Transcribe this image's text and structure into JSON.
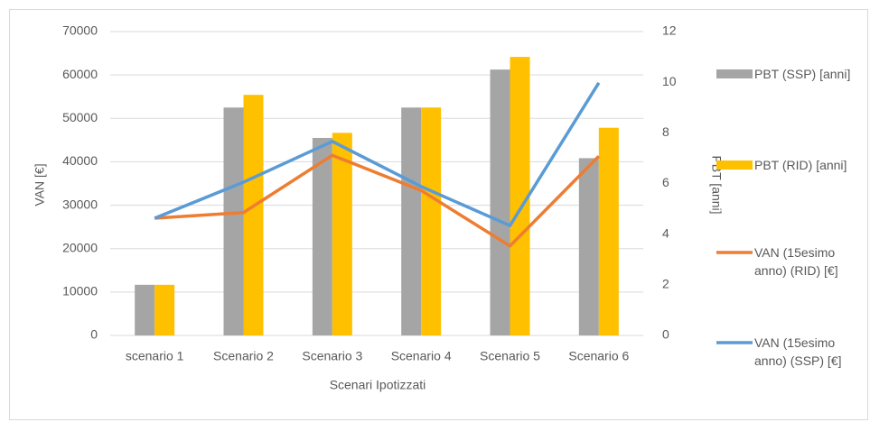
{
  "chart_data": {
    "type": "bar-line",
    "x_label": "Scenari Ipotizzati",
    "y_label": "VAN [€]",
    "y2_label": "PBT [anni]",
    "categories": [
      "scenario 1",
      "Scenario 2",
      "Scenario 3",
      "Scenario 4",
      "Scenario 5",
      "Scenario 6"
    ],
    "ylim": [
      0,
      70000
    ],
    "yticks": [
      0,
      10000,
      20000,
      30000,
      40000,
      50000,
      60000,
      70000
    ],
    "y2lim": [
      0,
      12
    ],
    "y2ticks": [
      0,
      2,
      4,
      6,
      8,
      10,
      12
    ],
    "grid": true,
    "legend": "right",
    "series": [
      {
        "name": "PBT (SSP) [anni]",
        "type": "bar",
        "axis": "y2",
        "color": "#a5a5a5",
        "values": [
          2,
          9,
          7.8,
          9,
          10.5,
          7
        ]
      },
      {
        "name": "PBT (RID) [anni]",
        "type": "bar",
        "axis": "y2",
        "color": "#ffc000",
        "values": [
          2,
          9.5,
          8,
          9,
          11,
          8.2
        ]
      },
      {
        "name": "VAN (15esimo anno) (RID) [€]",
        "type": "line",
        "color": "#ed7d31",
        "values": [
          27000,
          28300,
          41500,
          33400,
          20600,
          41300
        ]
      },
      {
        "name": "VAN (15esimo anno) (SSP) [€]",
        "type": "line",
        "color": "#5b9bd5",
        "values": [
          27000,
          35300,
          44700,
          34300,
          25300,
          58200
        ]
      }
    ]
  }
}
